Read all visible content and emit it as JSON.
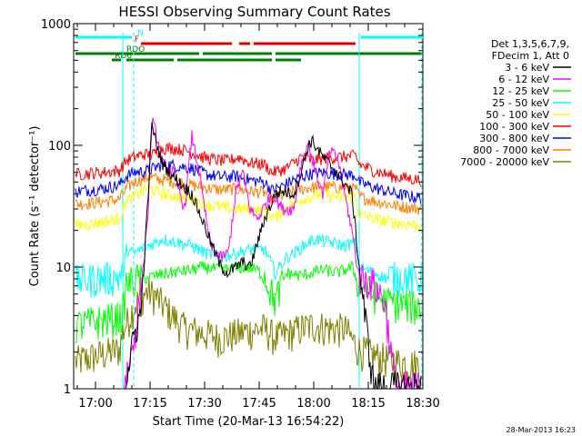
{
  "chart_data": {
    "type": "line",
    "title": "HESSI Observing Summary Count Rates",
    "xlabel": "Start Time (20-Mar-13 16:54:22)",
    "ylabel": "Count Rate (s⁻¹ detector⁻¹)",
    "yscale": "log",
    "ylim": [
      1,
      1000
    ],
    "xlim_min": [
      -2.5,
      93.5
    ],
    "x_ticks": [
      {
        "min": 3.5,
        "label": "17:00"
      },
      {
        "min": 18.5,
        "label": "17:15"
      },
      {
        "min": 33.5,
        "label": "17:30"
      },
      {
        "min": 48.5,
        "label": "17:45"
      },
      {
        "min": 63.5,
        "label": "18:00"
      },
      {
        "min": 78.5,
        "label": "18:15"
      },
      {
        "min": 93.5,
        "label": "18:30"
      }
    ],
    "y_ticks": [
      {
        "value": 1,
        "label": "1"
      },
      {
        "value": 10,
        "label": "10"
      },
      {
        "value": 100,
        "label": "100"
      },
      {
        "value": 1000,
        "label": "1000"
      }
    ],
    "legend_placement": "right",
    "legend_header": [
      "Det 1,3,5,6,7,9,",
      "FDecim 1, Att 0"
    ],
    "series": [
      {
        "name": "3 - 6 keV",
        "color": "#000000",
        "points": [
          [
            6,
            0
          ],
          [
            9,
            0
          ],
          [
            13.5,
            2
          ],
          [
            14.5,
            3
          ],
          [
            16,
            4
          ],
          [
            18,
            40
          ],
          [
            19,
            150
          ],
          [
            20,
            110
          ],
          [
            22,
            70
          ],
          [
            25,
            55
          ],
          [
            30,
            40
          ],
          [
            34,
            20
          ],
          [
            36,
            14
          ],
          [
            38,
            10
          ],
          [
            40,
            9
          ],
          [
            44,
            11
          ],
          [
            46,
            10
          ],
          [
            50,
            25
          ],
          [
            53,
            40
          ],
          [
            55,
            42
          ],
          [
            58,
            40
          ],
          [
            60,
            60
          ],
          [
            62,
            100
          ],
          [
            63,
            110
          ],
          [
            66,
            80
          ],
          [
            70,
            60
          ],
          [
            74,
            40
          ],
          [
            76,
            10
          ],
          [
            78,
            3
          ],
          [
            80,
            1
          ],
          [
            82,
            1
          ],
          [
            86,
            1
          ],
          [
            93,
            1
          ]
        ]
      },
      {
        "name": "6 - 12 keV",
        "color": "#ff00ff",
        "points": [
          [
            6,
            0
          ],
          [
            9,
            0
          ],
          [
            13.5,
            2
          ],
          [
            14.5,
            3
          ],
          [
            16,
            6
          ],
          [
            18,
            30
          ],
          [
            19,
            160
          ],
          [
            20,
            130
          ],
          [
            22,
            70
          ],
          [
            25,
            60
          ],
          [
            28,
            30
          ],
          [
            30,
            120
          ],
          [
            32,
            60
          ],
          [
            35,
            15
          ],
          [
            38,
            12
          ],
          [
            40,
            13
          ],
          [
            42,
            40
          ],
          [
            44,
            60
          ],
          [
            46,
            30
          ],
          [
            48,
            25
          ],
          [
            52,
            40
          ],
          [
            55,
            30
          ],
          [
            58,
            30
          ],
          [
            60,
            70
          ],
          [
            62,
            105
          ],
          [
            64,
            60
          ],
          [
            66,
            40
          ],
          [
            68,
            90
          ],
          [
            70,
            80
          ],
          [
            72,
            40
          ],
          [
            74,
            20
          ],
          [
            76,
            8
          ],
          [
            80,
            7
          ],
          [
            83,
            5
          ],
          [
            86,
            1
          ],
          [
            93,
            1
          ]
        ]
      },
      {
        "name": "12 - 25 keV",
        "color": "#00ff00",
        "points": [
          [
            -2,
            3.2
          ],
          [
            5,
            3.5
          ],
          [
            11,
            3.8
          ],
          [
            12,
            7
          ],
          [
            16,
            8
          ],
          [
            20,
            8.5
          ],
          [
            24,
            9
          ],
          [
            30,
            9.5
          ],
          [
            33,
            10
          ],
          [
            38,
            9.5
          ],
          [
            45,
            10
          ],
          [
            48,
            9.5
          ],
          [
            50,
            8
          ],
          [
            53,
            5
          ],
          [
            56,
            9
          ],
          [
            60,
            8.5
          ],
          [
            63,
            9
          ],
          [
            66,
            9.5
          ],
          [
            70,
            9
          ],
          [
            74,
            10
          ],
          [
            76,
            7
          ],
          [
            79,
            6
          ],
          [
            83,
            5
          ],
          [
            93,
            4.5
          ]
        ]
      },
      {
        "name": "25 - 50 keV",
        "color": "#00ffff",
        "points": [
          [
            -2,
            7.5
          ],
          [
            4,
            7.8
          ],
          [
            11,
            8
          ],
          [
            12,
            14
          ],
          [
            14,
            13
          ],
          [
            18,
            15
          ],
          [
            22,
            17
          ],
          [
            26,
            16
          ],
          [
            30,
            15
          ],
          [
            34,
            13
          ],
          [
            38,
            12
          ],
          [
            42,
            13
          ],
          [
            46,
            14
          ],
          [
            50,
            14
          ],
          [
            53,
            9
          ],
          [
            56,
            12
          ],
          [
            58,
            13
          ],
          [
            62,
            16
          ],
          [
            64,
            17
          ],
          [
            68,
            16
          ],
          [
            72,
            15
          ],
          [
            75,
            16
          ],
          [
            76,
            10
          ],
          [
            80,
            9
          ],
          [
            84,
            8
          ],
          [
            88,
            8
          ],
          [
            93,
            7.5
          ]
        ]
      },
      {
        "name": "50 - 100 keV",
        "color": "#ffff00",
        "points": [
          [
            -2,
            22
          ],
          [
            4,
            23
          ],
          [
            10,
            25
          ],
          [
            12,
            35
          ],
          [
            14,
            38
          ],
          [
            18,
            45
          ],
          [
            22,
            40
          ],
          [
            26,
            38
          ],
          [
            30,
            36
          ],
          [
            34,
            33
          ],
          [
            38,
            31
          ],
          [
            42,
            30
          ],
          [
            46,
            30
          ],
          [
            50,
            29
          ],
          [
            53,
            25
          ],
          [
            55,
            30
          ],
          [
            60,
            36
          ],
          [
            63,
            38
          ],
          [
            66,
            40
          ],
          [
            70,
            38
          ],
          [
            75,
            37
          ],
          [
            76,
            27
          ],
          [
            80,
            25
          ],
          [
            86,
            23
          ],
          [
            93,
            22
          ]
        ]
      },
      {
        "name": "100 - 300 keV",
        "color": "#ff0000",
        "points": [
          [
            -2,
            58
          ],
          [
            5,
            60
          ],
          [
            10,
            62
          ],
          [
            12,
            75
          ],
          [
            14,
            80
          ],
          [
            17,
            85
          ],
          [
            19,
            83
          ],
          [
            22,
            95
          ],
          [
            25,
            95
          ],
          [
            29,
            90
          ],
          [
            33,
            80
          ],
          [
            38,
            75
          ],
          [
            40,
            75
          ],
          [
            43,
            80
          ],
          [
            46,
            72
          ],
          [
            50,
            70
          ],
          [
            52,
            60
          ],
          [
            54,
            62
          ],
          [
            56,
            65
          ],
          [
            60,
            80
          ],
          [
            63,
            75
          ],
          [
            66,
            78
          ],
          [
            70,
            80
          ],
          [
            75,
            82
          ],
          [
            76,
            70
          ],
          [
            80,
            62
          ],
          [
            86,
            55
          ],
          [
            93,
            52
          ]
        ]
      },
      {
        "name": "300 - 800 keV",
        "color": "#0000ff",
        "points": [
          [
            -2,
            42
          ],
          [
            5,
            44
          ],
          [
            10,
            47
          ],
          [
            12,
            56
          ],
          [
            14,
            60
          ],
          [
            18,
            62
          ],
          [
            22,
            70
          ],
          [
            26,
            68
          ],
          [
            30,
            65
          ],
          [
            34,
            58
          ],
          [
            38,
            55
          ],
          [
            42,
            56
          ],
          [
            46,
            52
          ],
          [
            50,
            50
          ],
          [
            52,
            43
          ],
          [
            54,
            45
          ],
          [
            58,
            52
          ],
          [
            62,
            58
          ],
          [
            66,
            60
          ],
          [
            70,
            58
          ],
          [
            75,
            57
          ],
          [
            76,
            50
          ],
          [
            80,
            45
          ],
          [
            86,
            40
          ],
          [
            93,
            37
          ]
        ]
      },
      {
        "name": "800 - 7000 keV",
        "color": "#ff8000",
        "points": [
          [
            -2,
            33
          ],
          [
            4,
            34
          ],
          [
            10,
            36
          ],
          [
            12,
            44
          ],
          [
            14,
            50
          ],
          [
            18,
            55
          ],
          [
            22,
            52
          ],
          [
            26,
            50
          ],
          [
            30,
            47
          ],
          [
            34,
            45
          ],
          [
            38,
            43
          ],
          [
            42,
            44
          ],
          [
            46,
            42
          ],
          [
            50,
            41
          ],
          [
            52,
            36
          ],
          [
            54,
            38
          ],
          [
            58,
            42
          ],
          [
            62,
            45
          ],
          [
            66,
            46
          ],
          [
            70,
            45
          ],
          [
            75,
            44
          ],
          [
            76,
            38
          ],
          [
            80,
            35
          ],
          [
            86,
            32
          ],
          [
            93,
            30
          ]
        ]
      },
      {
        "name": "7000 - 20000 keV",
        "color": "#808000",
        "points": [
          [
            -2,
            1.6
          ],
          [
            4,
            1.8
          ],
          [
            10,
            2.0
          ],
          [
            11,
            2.8
          ],
          [
            14,
            4.5
          ],
          [
            16,
            5.5
          ],
          [
            18,
            6.0
          ],
          [
            20,
            5.5
          ],
          [
            24,
            4.0
          ],
          [
            28,
            3.0
          ],
          [
            32,
            2.8
          ],
          [
            38,
            2.5
          ],
          [
            44,
            2.8
          ],
          [
            50,
            3.0
          ],
          [
            53,
            2.5
          ],
          [
            56,
            2.7
          ],
          [
            60,
            3.0
          ],
          [
            64,
            3.2
          ],
          [
            68,
            3.0
          ],
          [
            72,
            3.0
          ],
          [
            76,
            2.0
          ],
          [
            80,
            1.8
          ],
          [
            86,
            1.6
          ],
          [
            93,
            1.5
          ]
        ]
      }
    ],
    "flag_bars": [
      {
        "label": "N",
        "color": "#00ffff",
        "segments": [
          [
            -2,
            13.5
          ],
          [
            76.5,
            93.5
          ]
        ]
      },
      {
        "label": "F",
        "color": "#e00000",
        "segments": [
          [
            16,
            41
          ],
          [
            43,
            46
          ],
          [
            47,
            75
          ]
        ]
      },
      {
        "label": "RDO",
        "color": "#008000",
        "segments": [
          [
            -2,
            32
          ],
          [
            33,
            52
          ],
          [
            53,
            93.5
          ]
        ]
      },
      {
        "label": "RD6",
        "color": "#008000",
        "segments": [
          [
            8,
            10.5
          ],
          [
            12,
            25
          ],
          [
            26,
            52
          ],
          [
            53,
            60
          ]
        ]
      }
    ],
    "vertical_markers": [
      {
        "min": 11,
        "color": "#00ffff",
        "style": "solid"
      },
      {
        "min": 14,
        "color": "#00ffff",
        "style": "dashed"
      },
      {
        "min": 76,
        "color": "#00ffff",
        "style": "solid"
      },
      {
        "min": 93.2,
        "color": "#00ffff",
        "style": "dashed"
      }
    ],
    "timestamp": "28-Mar-2013 16:23"
  }
}
